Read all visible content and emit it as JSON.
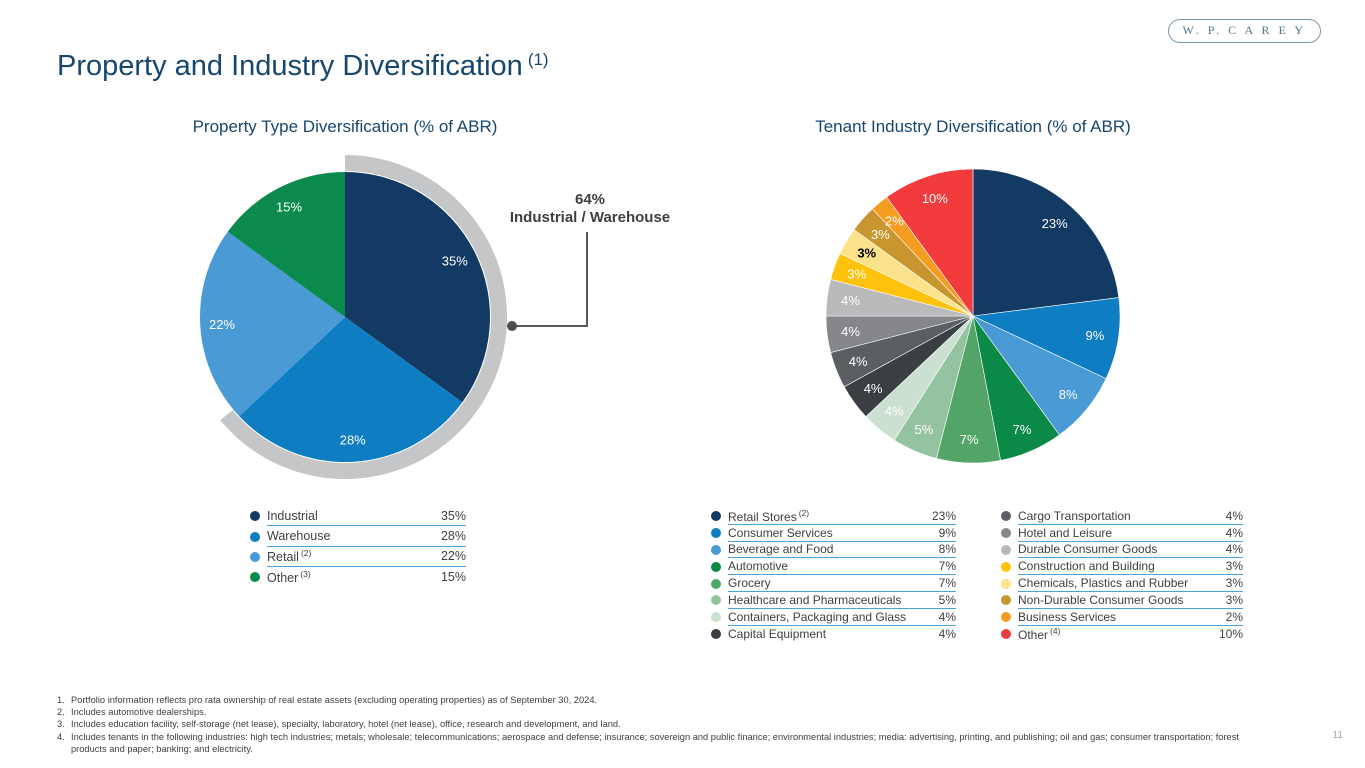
{
  "logo": {
    "text": "W. P. C A R E Y"
  },
  "page_title": {
    "text": "Property and Industry Diversification",
    "note": "(1)"
  },
  "page_number": "11",
  "colors": {
    "title_navy": "#17466e",
    "legend_underline": "#4aa3d9",
    "highlight_arc_gray": "#c5c6c7",
    "callout_gray": "#3f3f3f"
  },
  "chart_data": [
    {
      "type": "pie",
      "title": "Property Type Diversification (% of ABR)",
      "start_angle_deg": 0,
      "direction": "clockwise",
      "slices": [
        {
          "label": "Industrial",
          "value": 35,
          "display": "35%",
          "color": "#123a63"
        },
        {
          "label": "Warehouse",
          "value": 28,
          "display": "28%",
          "color": "#0e7dc1"
        },
        {
          "label": "Retail",
          "note": "(2)",
          "value": 22,
          "display": "22%",
          "color": "#4a9ad5"
        },
        {
          "label": "Other",
          "note": "(3)",
          "value": 15,
          "display": "15%",
          "color": "#0b8a4d"
        }
      ],
      "highlight_arc": {
        "percent": 64,
        "start_deg": 0,
        "color": "#c5c6c7"
      },
      "annotation": {
        "value": "64%",
        "label": "Industrial / Warehouse"
      },
      "legend_position": "below"
    },
    {
      "type": "pie",
      "title": "Tenant Industry Diversification (% of ABR)",
      "start_angle_deg": 0,
      "direction": "clockwise",
      "slices": [
        {
          "label": "Retail Stores",
          "note": "(2)",
          "value": 23,
          "display": "23%",
          "color": "#123a63"
        },
        {
          "label": "Consumer Services",
          "value": 9,
          "display": "9%",
          "color": "#0e7dc1"
        },
        {
          "label": "Beverage and Food",
          "value": 8,
          "display": "8%",
          "color": "#4a9ad5"
        },
        {
          "label": "Automotive",
          "value": 7,
          "display": "7%",
          "color": "#0b8a47"
        },
        {
          "label": "Grocery",
          "value": 7,
          "display": "7%",
          "color": "#52a469"
        },
        {
          "label": "Healthcare and Pharmaceuticals",
          "value": 5,
          "display": "5%",
          "color": "#93c3a0"
        },
        {
          "label": "Containers, Packaging and Glass",
          "value": 4,
          "display": "4%",
          "color": "#cbe0d1"
        },
        {
          "label": "Capital Equipment",
          "value": 4,
          "display": "4%",
          "color": "#3b3f43"
        },
        {
          "label": "Cargo Transportation",
          "value": 4,
          "display": "4%",
          "color": "#5b5e62"
        },
        {
          "label": "Hotel and Leisure",
          "value": 4,
          "display": "4%",
          "color": "#85878a"
        },
        {
          "label": "Durable Consumer Goods",
          "value": 4,
          "display": "4%",
          "color": "#b9babc"
        },
        {
          "label": "Construction and Building",
          "value": 3,
          "display": "3%",
          "color": "#ffc20e"
        },
        {
          "label": "Chemicals, Plastics and Rubber",
          "value": 3,
          "display": "3%",
          "color": "#fce38b",
          "label_color": "#000000",
          "label_bold": true
        },
        {
          "label": "Non-Durable Consumer Goods",
          "value": 3,
          "display": "3%",
          "color": "#c9952f"
        },
        {
          "label": "Business Services",
          "value": 2,
          "display": "2%",
          "color": "#f59b20"
        },
        {
          "label": "Other",
          "note": "(4)",
          "value": 10,
          "display": "10%",
          "color": "#f23b3c"
        }
      ],
      "legend_columns": 2,
      "legend_position": "below"
    }
  ],
  "footnotes": [
    {
      "num": "1.",
      "text": "Portfolio information reflects pro rata ownership of real estate assets (excluding operating properties) as of September 30, 2024."
    },
    {
      "num": "2.",
      "text": "Includes automotive dealerships."
    },
    {
      "num": "3.",
      "text": "Includes education facility, self-storage (net lease), specialty, laboratory, hotel (net lease), office, research and development, and land."
    },
    {
      "num": "4.",
      "text": "Includes tenants in the following industries: high tech industries; metals; wholesale; telecommunications; aerospace and defense; insurance; sovereign and public finance; environmental industries; media: advertising, printing, and publishing; oil and gas; consumer transportation; forest products and paper; banking; and electricity."
    }
  ]
}
